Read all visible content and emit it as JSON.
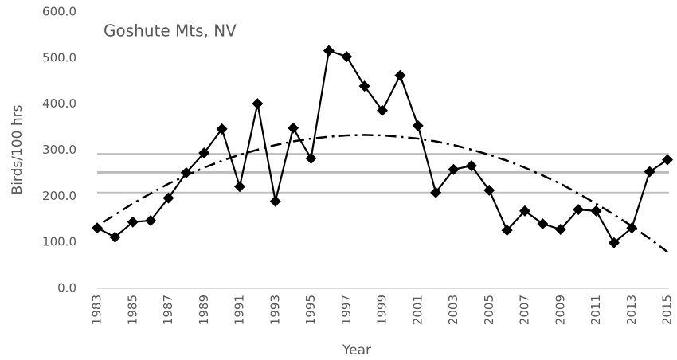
{
  "chart_data": {
    "type": "line",
    "annotation": "Goshute Mts, NV",
    "x_label": "Year",
    "y_label": "Birds/100 hrs",
    "x": [
      1983,
      1984,
      1985,
      1986,
      1987,
      1988,
      1989,
      1990,
      1991,
      1992,
      1993,
      1994,
      1995,
      1996,
      1997,
      1998,
      1999,
      2000,
      2001,
      2002,
      2003,
      2004,
      2005,
      2006,
      2007,
      2008,
      2009,
      2010,
      2011,
      2012,
      2013,
      2014,
      2015
    ],
    "series": [
      {
        "color": "#000000",
        "values": [
          131,
          111,
          144,
          147,
          196,
          251,
          294,
          346,
          221,
          401,
          189,
          348,
          282,
          516,
          503,
          439,
          386,
          462,
          353,
          208,
          258,
          266,
          213,
          126,
          168,
          140,
          128,
          171,
          168,
          99,
          131,
          253,
          279
        ]
      },
      {
        "color": "#000000",
        "values": [
          135,
          160,
          184,
          206,
          227,
          245,
          262,
          277,
          290,
          301,
          311,
          319,
          325,
          329,
          332,
          333,
          332,
          329,
          325,
          319,
          311,
          301,
          290,
          277,
          262,
          245,
          227,
          206,
          184,
          160,
          135,
          108,
          79
        ]
      }
    ],
    "reference_lines": [
      292,
      251,
      208
    ],
    "reference_color": "#bfbfbf",
    "xlim": [
      1983,
      2015
    ],
    "xticks": [
      1983,
      1985,
      1987,
      1989,
      1991,
      1993,
      1995,
      1997,
      1999,
      2001,
      2003,
      2005,
      2007,
      2009,
      2011,
      2013,
      2015
    ],
    "ylim": [
      0,
      600
    ],
    "yticks": [
      {
        "value": 0,
        "label": "0.0"
      },
      {
        "value": 100,
        "label": "100.0"
      },
      {
        "value": 200,
        "label": "200.0"
      },
      {
        "value": 300,
        "label": "300.0"
      },
      {
        "value": 400,
        "label": "400.0"
      },
      {
        "value": 500,
        "label": "500.0"
      },
      {
        "value": 600,
        "label": "600.0"
      }
    ]
  }
}
